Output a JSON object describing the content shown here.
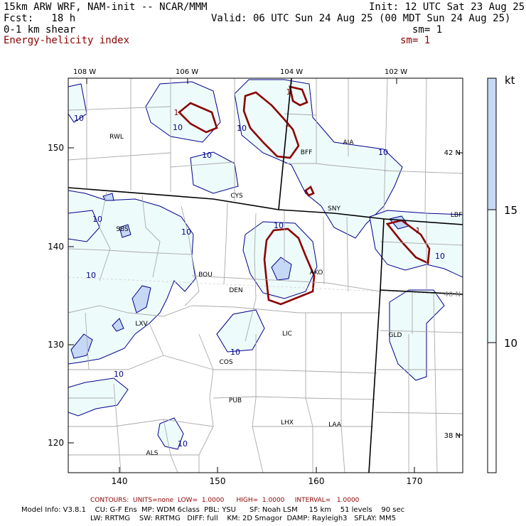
{
  "header": {
    "title": "15km ARW WRF, NAM-init -- NCAR/MMM",
    "init": "Init: 12 UTC Sat 23 Aug 25",
    "fcst": "Fcst:   18 h",
    "valid": "Valid: 06 UTC Sun 24 Aug 25 (00 MDT Sun 24 Aug 25)",
    "field1": "0-1 km shear",
    "sm1": "sm= 1",
    "field2": "Energy-helicity index",
    "sm2": "sm= 1"
  },
  "map": {
    "top_lon_labels": [
      "108 W",
      "106 W",
      "104 W",
      "102 W"
    ],
    "left_y_ticks": [
      "150",
      "140",
      "130",
      "120"
    ],
    "bottom_x_ticks": [
      "140",
      "150",
      "160",
      "170"
    ],
    "lat_labels": [
      "42 N",
      "40 N",
      "38 N"
    ],
    "stations": [
      "RWL",
      "BFF",
      "AIA",
      "CYS",
      "SNY",
      "LBF",
      "SBS",
      "BOU",
      "DEN",
      "AKO",
      "LXV",
      "LIC",
      "GLD",
      "COS",
      "PUB",
      "LHX",
      "LAA",
      "ALS"
    ],
    "contour_labels": {
      "shear": "10",
      "ehi": "1"
    }
  },
  "colorbar": {
    "unit": "kt",
    "labels": [
      "15",
      "10"
    ],
    "colors": {
      "high": "#c5d8f5",
      "mid": "#eefbfb",
      "low": "#ffffff"
    }
  },
  "colors": {
    "shear_fill": "#eefbfb",
    "shear_line": "#00008b",
    "shear_fill_high": "#c5d8f5",
    "ehi_line": "#8b0000",
    "boundaries": "#aaaaaa"
  },
  "footer": {
    "contours": "CONTOURS:  UNITS=none  LOW=  1.0000      HIGH=  1.0000     INTERVAL=   1.0000",
    "model1": "Model Info: V3.8.1    CU: G-F Ens  MP: WDM 6class  PBL: YSU      SF: Noah LSM     15 km    51 levels    90 sec",
    "model2": "LW: RRTMG    SW: RRTMG   DIFF: full    KM: 2D Smagor  DAMP: Rayleigh3   SFLAY: MM5"
  }
}
